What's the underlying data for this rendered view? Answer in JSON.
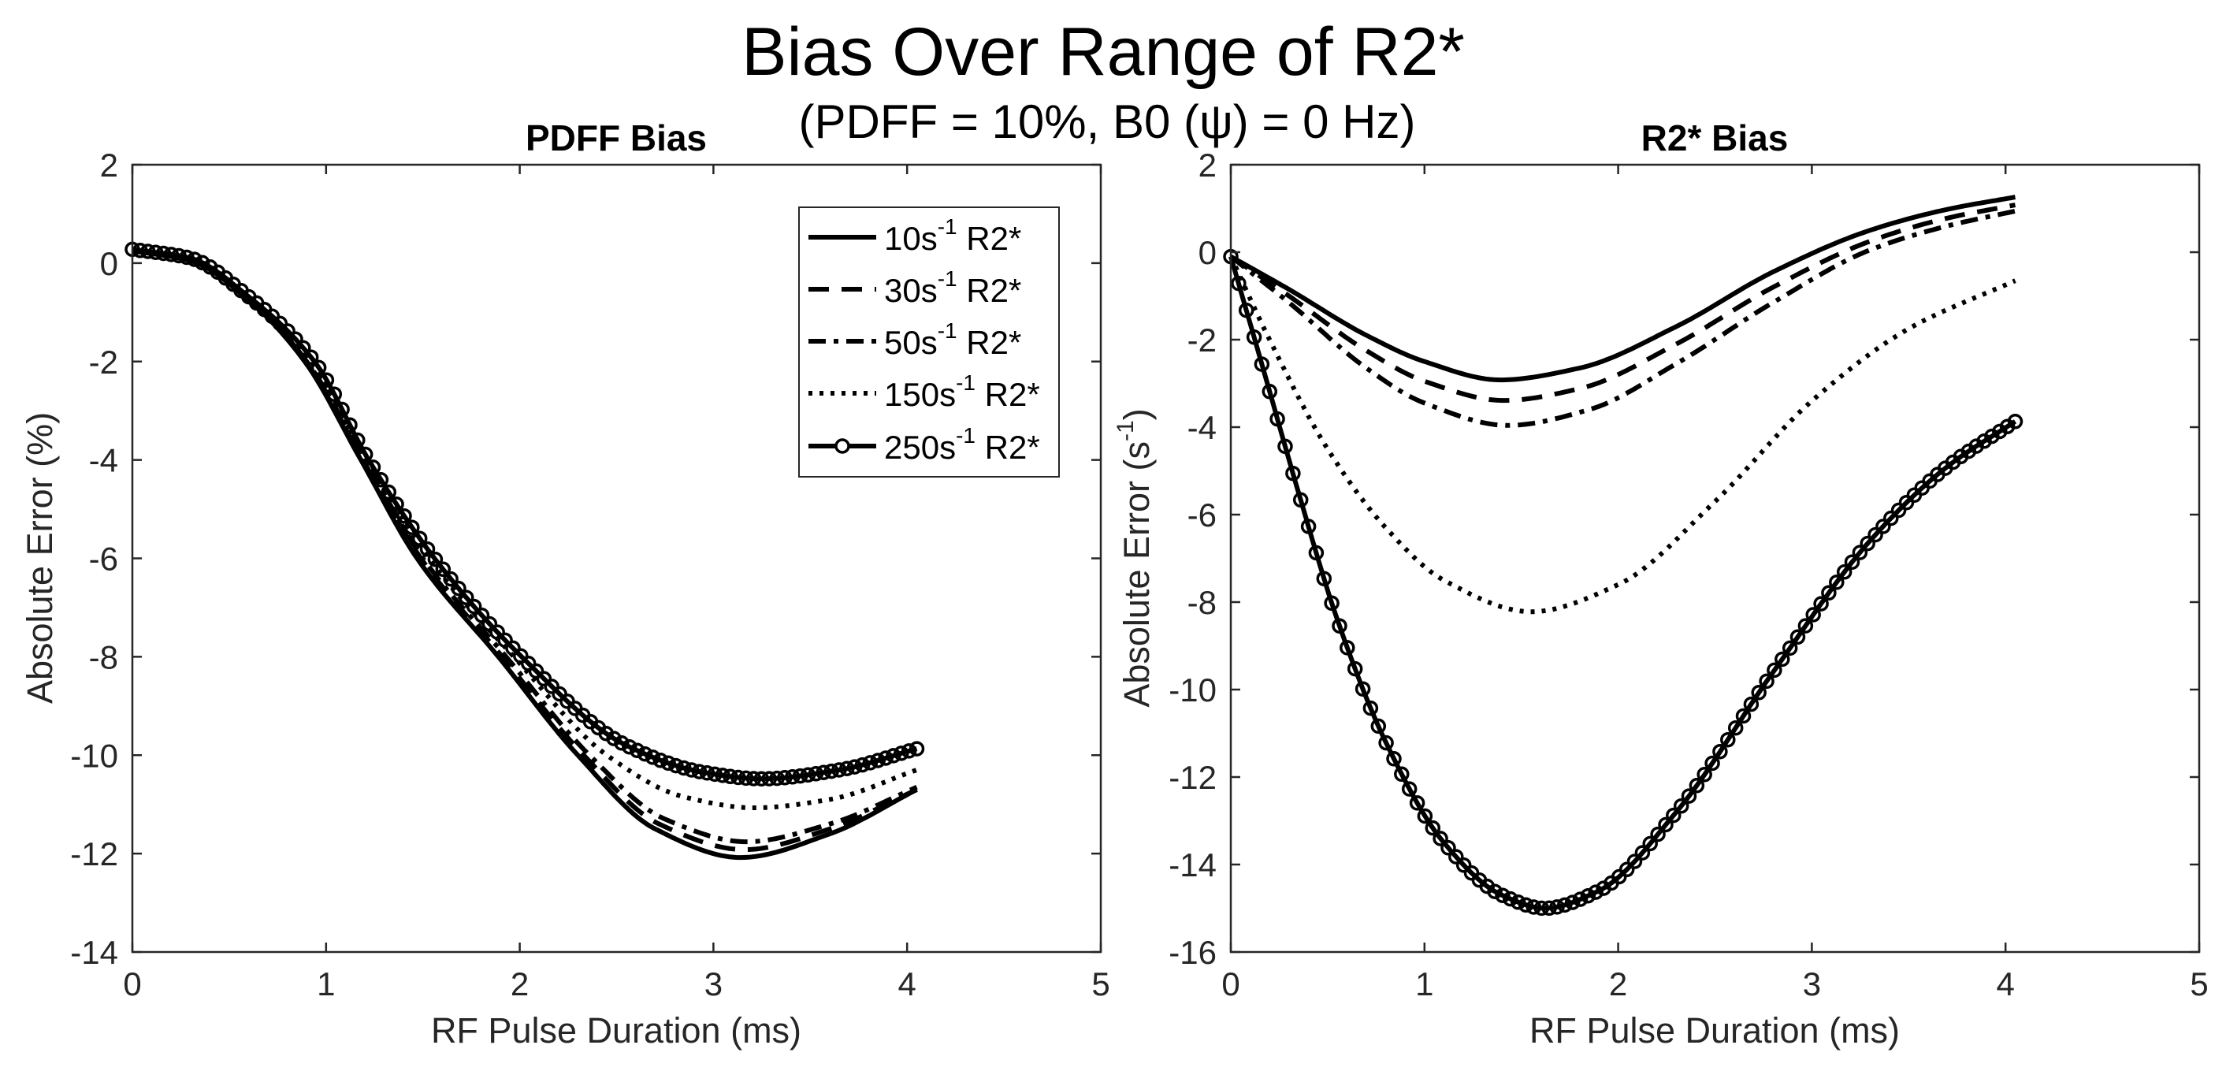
{
  "figure": {
    "title": "Bias Over Range of R2*",
    "subtitle": "(PDFF = 10%, B0 (ψ) = 0 Hz)"
  },
  "chart_data": [
    {
      "type": "line",
      "title": "PDFF Bias",
      "xlabel": "RF Pulse Duration (ms)",
      "ylabel": "Absolute Error (%)",
      "xlim": [
        0,
        5
      ],
      "ylim": [
        -14,
        2
      ],
      "xticks": [
        0,
        1,
        2,
        3,
        4,
        5
      ],
      "yticks": [
        -14,
        -12,
        -10,
        -8,
        -6,
        -4,
        -2,
        0,
        2
      ],
      "grid": false,
      "legend": {
        "placement": "top-right",
        "entries": [
          {
            "base": "10s",
            "sup": "-1",
            "suffix": " R2*",
            "style": "solid"
          },
          {
            "base": "30s",
            "sup": "-1",
            "suffix": " R2*",
            "style": "dashed"
          },
          {
            "base": "50s",
            "sup": "-1",
            "suffix": " R2*",
            "style": "dashdot"
          },
          {
            "base": "150s",
            "sup": "-1",
            "suffix": " R2*",
            "style": "dotted"
          },
          {
            "base": "250s",
            "sup": "-1",
            "suffix": " R2*",
            "style": "solid-circle"
          }
        ]
      },
      "series": [
        {
          "name": "10s^-1 R2*",
          "style": "solid",
          "x": [
            0,
            0.3,
            0.6,
            0.89,
            1.18,
            1.47,
            1.89,
            2.3,
            2.7,
            3.14,
            3.6,
            4.05
          ],
          "y": [
            0.25,
            0.05,
            -0.75,
            -2.0,
            -4.0,
            -6.0,
            -8.0,
            -10.0,
            -11.5,
            -12.08,
            -11.6,
            -10.7
          ]
        },
        {
          "name": "30s^-1 R2*",
          "style": "dashed",
          "x": [
            0,
            0.3,
            0.6,
            0.9,
            1.19,
            1.49,
            1.91,
            2.33,
            2.72,
            3.16,
            3.6,
            4.05
          ],
          "y": [
            0.25,
            0.05,
            -0.73,
            -2.0,
            -4.0,
            -6.0,
            -8.0,
            -10.0,
            -11.4,
            -11.92,
            -11.5,
            -10.7
          ]
        },
        {
          "name": "50s^-1 R2*",
          "style": "dashdot",
          "x": [
            0,
            0.3,
            0.6,
            0.9,
            1.2,
            1.5,
            1.93,
            2.36,
            2.75,
            3.17,
            3.6,
            4.05
          ],
          "y": [
            0.25,
            0.06,
            -0.72,
            -2.0,
            -4.0,
            -6.0,
            -8.0,
            -10.0,
            -11.3,
            -11.76,
            -11.4,
            -10.65
          ]
        },
        {
          "name": "150s^-1 R2*",
          "style": "dotted",
          "x": [
            0,
            0.3,
            0.6,
            0.92,
            1.21,
            1.53,
            1.97,
            2.45,
            2.85,
            3.21,
            3.6,
            4.05
          ],
          "y": [
            0.27,
            0.08,
            -0.7,
            -2.0,
            -4.0,
            -6.0,
            -8.0,
            -10.0,
            -10.85,
            -11.07,
            -10.9,
            -10.3
          ]
        },
        {
          "name": "250s^-1 R2*",
          "style": "solid-circle",
          "x": [
            0,
            0.3,
            0.6,
            0.94,
            1.22,
            1.56,
            2.01,
            2.55,
            2.95,
            3.25,
            3.65,
            4.05
          ],
          "y": [
            0.28,
            0.1,
            -0.68,
            -2.0,
            -4.0,
            -6.0,
            -8.0,
            -9.8,
            -10.35,
            -10.48,
            -10.3,
            -9.87
          ]
        }
      ]
    },
    {
      "type": "line",
      "title": "R2* Bias",
      "xlabel": "RF Pulse Duration (ms)",
      "ylabel_base": "Absolute Error (s",
      "ylabel_sup": "-1",
      "ylabel_end": ")",
      "xlim": [
        0,
        5
      ],
      "ylim": [
        -16,
        2
      ],
      "xticks": [
        0,
        1,
        2,
        3,
        4,
        5
      ],
      "yticks": [
        -16,
        -14,
        -12,
        -10,
        -8,
        -6,
        -4,
        -2,
        0,
        2
      ],
      "grid": false,
      "series": [
        {
          "name": "10s^-1 R2*",
          "style": "solid",
          "x": [
            0,
            0.3,
            0.7,
            1.0,
            1.39,
            1.8,
            2.3,
            2.8,
            3.3,
            3.7,
            4.05
          ],
          "y": [
            -0.1,
            -0.85,
            -1.9,
            -2.5,
            -2.92,
            -2.65,
            -1.7,
            -0.45,
            0.5,
            0.98,
            1.26
          ]
        },
        {
          "name": "30s^-1 R2*",
          "style": "dashed",
          "x": [
            0,
            0.3,
            0.7,
            1.0,
            1.41,
            1.8,
            2.3,
            2.8,
            3.3,
            3.7,
            4.05
          ],
          "y": [
            -0.1,
            -1.0,
            -2.25,
            -2.95,
            -3.39,
            -3.12,
            -2.1,
            -0.8,
            0.25,
            0.78,
            1.08
          ]
        },
        {
          "name": "50s^-1 R2*",
          "style": "dashdot",
          "x": [
            0,
            0.3,
            0.7,
            1.0,
            1.43,
            1.85,
            2.3,
            2.8,
            3.3,
            3.7,
            4.05
          ],
          "y": [
            -0.1,
            -1.15,
            -2.65,
            -3.45,
            -3.96,
            -3.6,
            -2.55,
            -1.15,
            0.05,
            0.6,
            0.94
          ]
        },
        {
          "name": "150s^-1 R2*",
          "style": "dotted",
          "x": [
            0,
            0.2,
            0.5,
            0.8,
            1.1,
            1.55,
            2.0,
            2.5,
            3.0,
            3.5,
            4.05
          ],
          "y": [
            -0.1,
            -2.0,
            -4.5,
            -6.3,
            -7.5,
            -8.22,
            -7.6,
            -5.7,
            -3.4,
            -1.75,
            -0.65
          ]
        },
        {
          "name": "250s^-1 R2*",
          "style": "solid-circle",
          "x": [
            0,
            0.15,
            0.35,
            0.55,
            0.8,
            1.1,
            1.4,
            1.62,
            1.9,
            2.3,
            2.8,
            3.3,
            3.7,
            4.05
          ],
          "y": [
            -0.1,
            -2.4,
            -5.5,
            -8.4,
            -11.2,
            -13.5,
            -14.7,
            -15.0,
            -14.6,
            -12.8,
            -9.6,
            -6.6,
            -4.9,
            -3.87
          ]
        }
      ]
    }
  ]
}
